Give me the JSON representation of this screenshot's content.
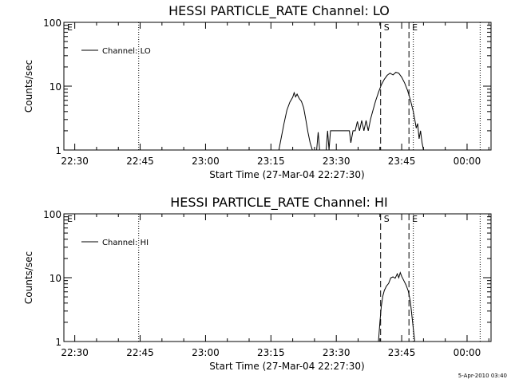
{
  "footer_stamp": "5-Apr-2010 03:40",
  "chart_data": [
    {
      "type": "line",
      "title": "HESSI PARTICLE_RATE Channel: LO",
      "xlabel": "Start Time (27-Mar-04 22:27:30)",
      "ylabel": "Counts/sec",
      "y_scale": "log",
      "ylim": [
        1,
        100
      ],
      "y_ticks": [
        "1",
        "10",
        "100"
      ],
      "xlim": [
        "22:27:30",
        "00:05:30"
      ],
      "x_ticks": [
        "22:30",
        "22:45",
        "23:00",
        "23:15",
        "23:30",
        "23:45",
        "00:00"
      ],
      "legend": {
        "placement": "top-left",
        "entries": [
          "Channel: LO"
        ]
      },
      "markers": [
        {
          "label": "E",
          "time": "22:27:30",
          "style": "dotted"
        },
        {
          "label": "",
          "time": "22:44:40",
          "style": "dotted"
        },
        {
          "label": "S",
          "time": "23:40:10",
          "style": "dashed"
        },
        {
          "label": "E",
          "time": "23:46:40",
          "style": "dashed"
        },
        {
          "label": "",
          "time": "23:47:40",
          "style": "dotted"
        },
        {
          "label": "",
          "time": "00:03:00",
          "style": "dotted"
        }
      ],
      "series": [
        {
          "name": "Channel: LO",
          "points": [
            [
              "23:16:50",
              1
            ],
            [
              "23:17:20",
              1.5
            ],
            [
              "23:18:00",
              2.6
            ],
            [
              "23:18:40",
              4.2
            ],
            [
              "23:19:20",
              5.6
            ],
            [
              "23:20:00",
              6.7
            ],
            [
              "23:20:20",
              7.9
            ],
            [
              "23:20:40",
              6.8
            ],
            [
              "23:21:00",
              7.5
            ],
            [
              "23:21:30",
              6.4
            ],
            [
              "23:22:00",
              5.8
            ],
            [
              "23:22:30",
              4.6
            ],
            [
              "23:23:00",
              3.0
            ],
            [
              "23:23:30",
              1.9
            ],
            [
              "23:24:00",
              1.3
            ],
            [
              "23:24:30",
              1
            ]
          ]
        },
        {
          "name": "Channel: LO",
          "points": [
            [
              "23:25:30",
              1
            ],
            [
              "23:25:50",
              1.9
            ],
            [
              "23:26:10",
              1
            ]
          ]
        },
        {
          "name": "Channel: LO",
          "points": [
            [
              "23:27:40",
              1
            ],
            [
              "23:28:00",
              2.0
            ],
            [
              "23:28:20",
              1
            ],
            [
              "23:28:40",
              2.0
            ],
            [
              "23:33:00",
              2.0
            ],
            [
              "23:33:20",
              1.3
            ],
            [
              "23:33:50",
              2.0
            ],
            [
              "23:34:20",
              2.0
            ],
            [
              "23:34:50",
              2.8
            ],
            [
              "23:35:20",
              2.0
            ],
            [
              "23:35:50",
              2.9
            ],
            [
              "23:36:20",
              2.0
            ],
            [
              "23:36:50",
              2.9
            ],
            [
              "23:37:20",
              2.0
            ],
            [
              "23:37:50",
              3.0
            ],
            [
              "23:38:20",
              4.0
            ],
            [
              "23:39:00",
              5.8
            ],
            [
              "23:39:40",
              8.0
            ],
            [
              "23:40:20",
              10.5
            ],
            [
              "23:41:00",
              12.8
            ],
            [
              "23:41:40",
              14.8
            ],
            [
              "23:42:20",
              16.0
            ],
            [
              "23:43:00",
              15.0
            ],
            [
              "23:43:40",
              16.5
            ],
            [
              "23:44:20",
              16.0
            ],
            [
              "23:45:00",
              13.8
            ],
            [
              "23:45:40",
              11.3
            ],
            [
              "23:46:20",
              8.6
            ],
            [
              "23:47:00",
              6.1
            ],
            [
              "23:47:40",
              4.0
            ],
            [
              "23:48:00",
              3.0
            ],
            [
              "23:48:20",
              2.2
            ],
            [
              "23:48:40",
              2.6
            ],
            [
              "23:49:00",
              1.5
            ],
            [
              "23:49:20",
              2.0
            ],
            [
              "23:49:40",
              1.3
            ],
            [
              "23:50:00",
              1
            ]
          ]
        }
      ]
    },
    {
      "type": "line",
      "title": "HESSI PARTICLE_RATE Channel: HI",
      "xlabel": "Start Time (27-Mar-04 22:27:30)",
      "ylabel": "Counts/sec",
      "y_scale": "log",
      "ylim": [
        1,
        100
      ],
      "y_ticks": [
        "1",
        "10",
        "100"
      ],
      "xlim": [
        "22:27:30",
        "00:05:30"
      ],
      "x_ticks": [
        "22:30",
        "22:45",
        "23:00",
        "23:15",
        "23:30",
        "23:45",
        "00:00"
      ],
      "legend": {
        "placement": "top-left",
        "entries": [
          "Channel: HI"
        ]
      },
      "markers": [
        {
          "label": "E",
          "time": "22:27:30",
          "style": "dotted"
        },
        {
          "label": "",
          "time": "22:44:40",
          "style": "dotted"
        },
        {
          "label": "S",
          "time": "23:40:10",
          "style": "dashed"
        },
        {
          "label": "E",
          "time": "23:46:40",
          "style": "dashed"
        },
        {
          "label": "",
          "time": "23:47:40",
          "style": "dotted"
        },
        {
          "label": "",
          "time": "00:03:00",
          "style": "dotted"
        }
      ],
      "series": [
        {
          "name": "Channel: HI",
          "points": [
            [
              "23:39:40",
              1
            ],
            [
              "23:40:00",
              2.0
            ],
            [
              "23:40:20",
              3.6
            ],
            [
              "23:40:40",
              5.1
            ],
            [
              "23:41:00",
              6.3
            ],
            [
              "23:41:30",
              7.4
            ],
            [
              "23:42:00",
              8.1
            ],
            [
              "23:42:30",
              9.9
            ],
            [
              "23:43:00",
              10.3
            ],
            [
              "23:43:30",
              9.8
            ],
            [
              "23:44:00",
              11.5
            ],
            [
              "23:44:20",
              10.0
            ],
            [
              "23:44:40",
              12.0
            ],
            [
              "23:45:00",
              10.5
            ],
            [
              "23:45:30",
              9.0
            ],
            [
              "23:46:00",
              7.7
            ],
            [
              "23:46:30",
              6.2
            ],
            [
              "23:47:00",
              4.2
            ],
            [
              "23:47:20",
              2.6
            ],
            [
              "23:47:40",
              1.6
            ],
            [
              "23:48:00",
              1
            ]
          ]
        }
      ]
    }
  ]
}
